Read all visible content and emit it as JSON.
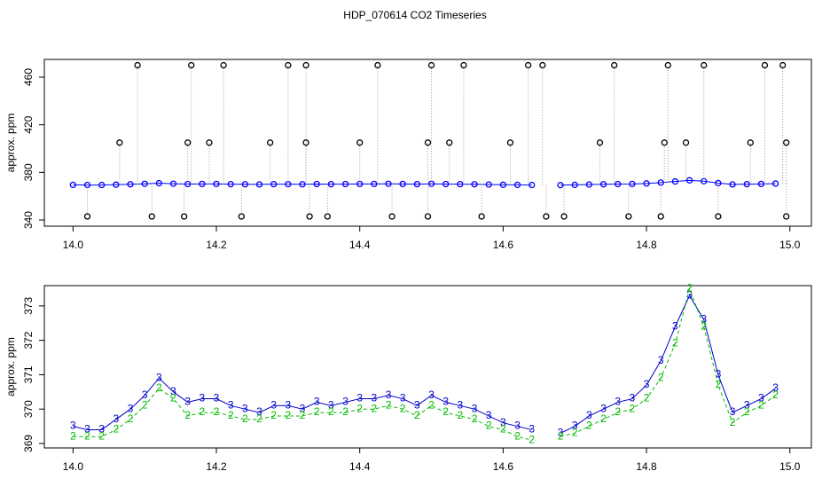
{
  "chart_data": [
    {
      "type": "scatter",
      "title": "HDP_070614  CO2 Timeseries",
      "ylabel": "approx. ppm",
      "xlim": [
        13.96,
        15.03
      ],
      "ylim": [
        334.8,
        474.9
      ],
      "xticks": [
        {
          "value": 14,
          "label": "14.0"
        },
        {
          "value": 14.2,
          "label": "14.2"
        },
        {
          "value": 14.4,
          "label": "14.4"
        },
        {
          "value": 14.6,
          "label": "14.6"
        },
        {
          "value": 14.8,
          "label": "14.8"
        },
        {
          "value": 15,
          "label": "15.0"
        }
      ],
      "yticks": [
        340,
        380,
        420,
        460
      ],
      "drop_color": "#999999",
      "series": [
        {
          "color": "#0000ff",
          "x": [
            14.0,
            14.02,
            14.04,
            14.06,
            14.08,
            14.1,
            14.12,
            14.14,
            14.16,
            14.18,
            14.2,
            14.22,
            14.24,
            14.26,
            14.28,
            14.3,
            14.32,
            14.34,
            14.36,
            14.38,
            14.4,
            14.42,
            14.44,
            14.46,
            14.48,
            14.5,
            14.52,
            14.54,
            14.56,
            14.58,
            14.6,
            14.62,
            14.64,
            14.66,
            14.68,
            14.7,
            14.72,
            14.74,
            14.76,
            14.78,
            14.8,
            14.82,
            14.84,
            14.86,
            14.88,
            14.9,
            14.92,
            14.94,
            14.96,
            14.98
          ],
          "values": [
            369.5,
            369.4,
            369.4,
            369.7,
            370.0,
            370.4,
            370.9,
            370.5,
            370.2,
            370.3,
            370.3,
            370.1,
            370.0,
            369.9,
            370.1,
            370.1,
            370.0,
            370.2,
            370.1,
            370.2,
            370.3,
            370.3,
            370.4,
            370.3,
            370.1,
            370.4,
            370.2,
            370.1,
            370.0,
            369.8,
            369.6,
            369.5,
            369.4,
            null,
            369.3,
            369.5,
            369.8,
            370.0,
            370.2,
            370.3,
            370.7,
            371.4,
            372.4,
            373.3,
            372.6,
            371.0,
            369.9,
            370.1,
            370.3,
            370.6
          ]
        },
        {
          "color": "#000000",
          "x": [
            14.02,
            14.065,
            14.09,
            14.11,
            14.155,
            14.16,
            14.165,
            14.19,
            14.21,
            14.235,
            14.275,
            14.3,
            14.325,
            14.325,
            14.33,
            14.355,
            14.4,
            14.425,
            14.445,
            14.495,
            14.495,
            14.5,
            14.525,
            14.545,
            14.57,
            14.61,
            14.635,
            14.655,
            14.66,
            14.685,
            14.735,
            14.755,
            14.775,
            14.82,
            14.825,
            14.83,
            14.855,
            14.88,
            14.9,
            14.945,
            14.965,
            14.99,
            14.995,
            14.995
          ],
          "values": [
            343,
            405,
            470,
            343,
            343,
            405,
            470,
            405,
            470,
            343,
            405,
            470,
            470,
            405,
            343,
            343,
            405,
            470,
            343,
            343,
            405,
            470,
            405,
            470,
            343,
            405,
            470,
            470,
            343,
            343,
            405,
            470,
            343,
            343,
            405,
            470,
            405,
            470,
            343,
            405,
            470,
            470,
            405,
            343
          ]
        }
      ]
    },
    {
      "type": "line",
      "ylabel": "approx. ppm",
      "xlim": [
        13.96,
        15.03
      ],
      "ylim": [
        368.87,
        373.59
      ],
      "xticks": [
        {
          "value": 14,
          "label": "14.0"
        },
        {
          "value": 14.2,
          "label": "14.2"
        },
        {
          "value": 14.4,
          "label": "14.4"
        },
        {
          "value": 14.6,
          "label": "14.6"
        },
        {
          "value": 14.8,
          "label": "14.8"
        },
        {
          "value": 15,
          "label": "15.0"
        }
      ],
      "yticks": [
        369,
        370,
        371,
        372,
        373
      ],
      "series": [
        {
          "marker": "3",
          "color": "#0000cc",
          "dash": false,
          "x": [
            14.0,
            14.02,
            14.04,
            14.06,
            14.08,
            14.1,
            14.12,
            14.14,
            14.16,
            14.18,
            14.2,
            14.22,
            14.24,
            14.26,
            14.28,
            14.3,
            14.32,
            14.34,
            14.36,
            14.38,
            14.4,
            14.42,
            14.44,
            14.46,
            14.48,
            14.5,
            14.52,
            14.54,
            14.56,
            14.58,
            14.6,
            14.62,
            14.64,
            14.66,
            14.68,
            14.7,
            14.72,
            14.74,
            14.76,
            14.78,
            14.8,
            14.82,
            14.84,
            14.86,
            14.88,
            14.9,
            14.92,
            14.94,
            14.96,
            14.98
          ],
          "values": [
            369.5,
            369.4,
            369.4,
            369.7,
            370.0,
            370.4,
            370.9,
            370.5,
            370.2,
            370.3,
            370.3,
            370.1,
            370.0,
            369.9,
            370.1,
            370.1,
            370.0,
            370.2,
            370.1,
            370.2,
            370.3,
            370.3,
            370.4,
            370.3,
            370.1,
            370.4,
            370.2,
            370.1,
            370.0,
            369.8,
            369.6,
            369.5,
            369.4,
            null,
            369.3,
            369.5,
            369.8,
            370.0,
            370.2,
            370.3,
            370.7,
            371.4,
            372.4,
            373.3,
            372.6,
            371.0,
            369.9,
            370.1,
            370.3,
            370.6
          ]
        },
        {
          "marker": "2",
          "color": "#00bb00",
          "dash": true,
          "x": [
            14.0,
            14.02,
            14.04,
            14.06,
            14.08,
            14.1,
            14.12,
            14.14,
            14.16,
            14.18,
            14.2,
            14.22,
            14.24,
            14.26,
            14.28,
            14.3,
            14.32,
            14.34,
            14.36,
            14.38,
            14.4,
            14.42,
            14.44,
            14.46,
            14.48,
            14.5,
            14.52,
            14.54,
            14.56,
            14.58,
            14.6,
            14.62,
            14.64,
            14.66,
            14.68,
            14.7,
            14.72,
            14.74,
            14.76,
            14.78,
            14.8,
            14.82,
            14.84,
            14.86,
            14.88,
            14.9,
            14.92,
            14.94,
            14.96,
            14.98
          ],
          "values": [
            369.2,
            369.2,
            369.2,
            369.4,
            369.7,
            370.1,
            370.6,
            370.3,
            369.8,
            369.9,
            369.9,
            369.8,
            369.7,
            369.7,
            369.8,
            369.8,
            369.8,
            369.9,
            369.9,
            369.9,
            370.0,
            370.0,
            370.1,
            370.0,
            369.8,
            370.1,
            369.9,
            369.8,
            369.7,
            369.5,
            369.4,
            369.2,
            369.1,
            null,
            369.2,
            369.3,
            369.5,
            369.7,
            369.9,
            370.0,
            370.3,
            370.9,
            371.9,
            373.5,
            372.4,
            370.7,
            369.6,
            369.9,
            370.1,
            370.4
          ]
        }
      ]
    }
  ]
}
